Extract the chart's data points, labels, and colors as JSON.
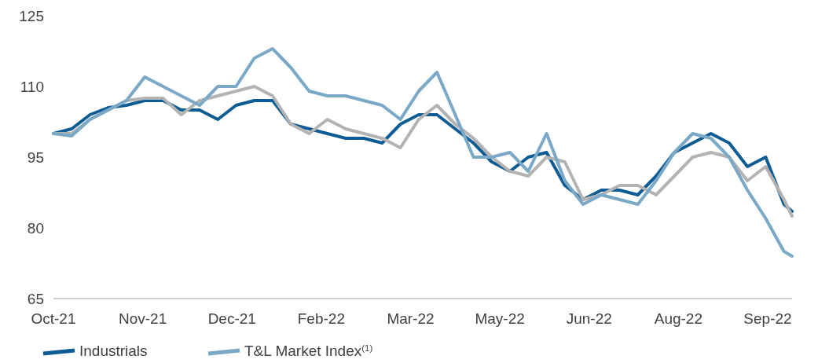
{
  "chart_data": {
    "type": "line",
    "xlim": [
      "2021-10-01",
      "2022-09-30"
    ],
    "xticks": [
      {
        "value": "2021-10-01",
        "label": "Oct-21"
      },
      {
        "value": "2021-11-14",
        "label": "Nov-21"
      },
      {
        "value": "2021-12-28",
        "label": "Dec-21"
      },
      {
        "value": "2022-02-10",
        "label": "Feb-22"
      },
      {
        "value": "2022-03-26",
        "label": "Mar-22"
      },
      {
        "value": "2022-05-09",
        "label": "May-22"
      },
      {
        "value": "2022-06-22",
        "label": "Jun-22"
      },
      {
        "value": "2022-08-05",
        "label": "Aug-22"
      },
      {
        "value": "2022-09-18",
        "label": "Sep-22"
      }
    ],
    "ylim": [
      65,
      125
    ],
    "yticks": [
      65,
      80,
      95,
      110,
      125
    ],
    "grid": false,
    "legend": "bottom",
    "marker": "none",
    "line_style": "solid",
    "series": [
      {
        "name": "Industrials",
        "color": "#0e5c94",
        "values": [
          100,
          101,
          104,
          105.5,
          106,
          107,
          107,
          105,
          105,
          103,
          106,
          107,
          107,
          102,
          101,
          100,
          99,
          99,
          98,
          102,
          104,
          104,
          101,
          98,
          94,
          92,
          95,
          96,
          89,
          86,
          88,
          88,
          87,
          91,
          96,
          98,
          100,
          98,
          93,
          95,
          85,
          83.5
        ]
      },
      {
        "color": "#b3b3b3",
        "values": [
          100,
          100,
          103,
          105,
          107,
          107.5,
          107.5,
          104,
          107,
          108,
          109,
          110,
          108,
          102,
          100,
          103,
          101,
          100,
          99,
          97,
          103,
          106,
          102,
          99,
          95,
          92,
          91,
          95,
          94,
          86,
          87,
          89,
          89,
          87,
          91,
          95,
          96,
          95,
          90,
          93,
          86,
          82.5
        ]
      },
      {
        "name": "T&L Market Index$^{(1)}$",
        "color": "#7aa8c7",
        "values": [
          100,
          99.5,
          103,
          105,
          107,
          112,
          110,
          108,
          106,
          110,
          110,
          116,
          118,
          114,
          109,
          108,
          108,
          107,
          106,
          103,
          109,
          113,
          104,
          95,
          95,
          96,
          92,
          100,
          90,
          85,
          87,
          86,
          85,
          90,
          96,
          100,
          99,
          95,
          88,
          82,
          75,
          74
        ]
      }
    ],
    "x": [
      "2021-10-01",
      "2021-10-10",
      "2021-10-19",
      "2021-10-28",
      "2021-11-06",
      "2021-11-15",
      "2021-11-24",
      "2021-12-03",
      "2021-12-12",
      "2021-12-21",
      "2021-12-30",
      "2022-01-08",
      "2022-01-17",
      "2022-01-26",
      "2022-02-04",
      "2022-02-13",
      "2022-02-22",
      "2022-03-03",
      "2022-03-12",
      "2022-03-21",
      "2022-03-30",
      "2022-04-08",
      "2022-04-17",
      "2022-04-26",
      "2022-05-05",
      "2022-05-14",
      "2022-05-23",
      "2022-06-01",
      "2022-06-10",
      "2022-06-19",
      "2022-06-28",
      "2022-07-07",
      "2022-07-16",
      "2022-07-25",
      "2022-08-03",
      "2022-08-12",
      "2022-08-21",
      "2022-08-30",
      "2022-09-08",
      "2022-09-17",
      "2022-09-26",
      "2022-09-30"
    ]
  }
}
